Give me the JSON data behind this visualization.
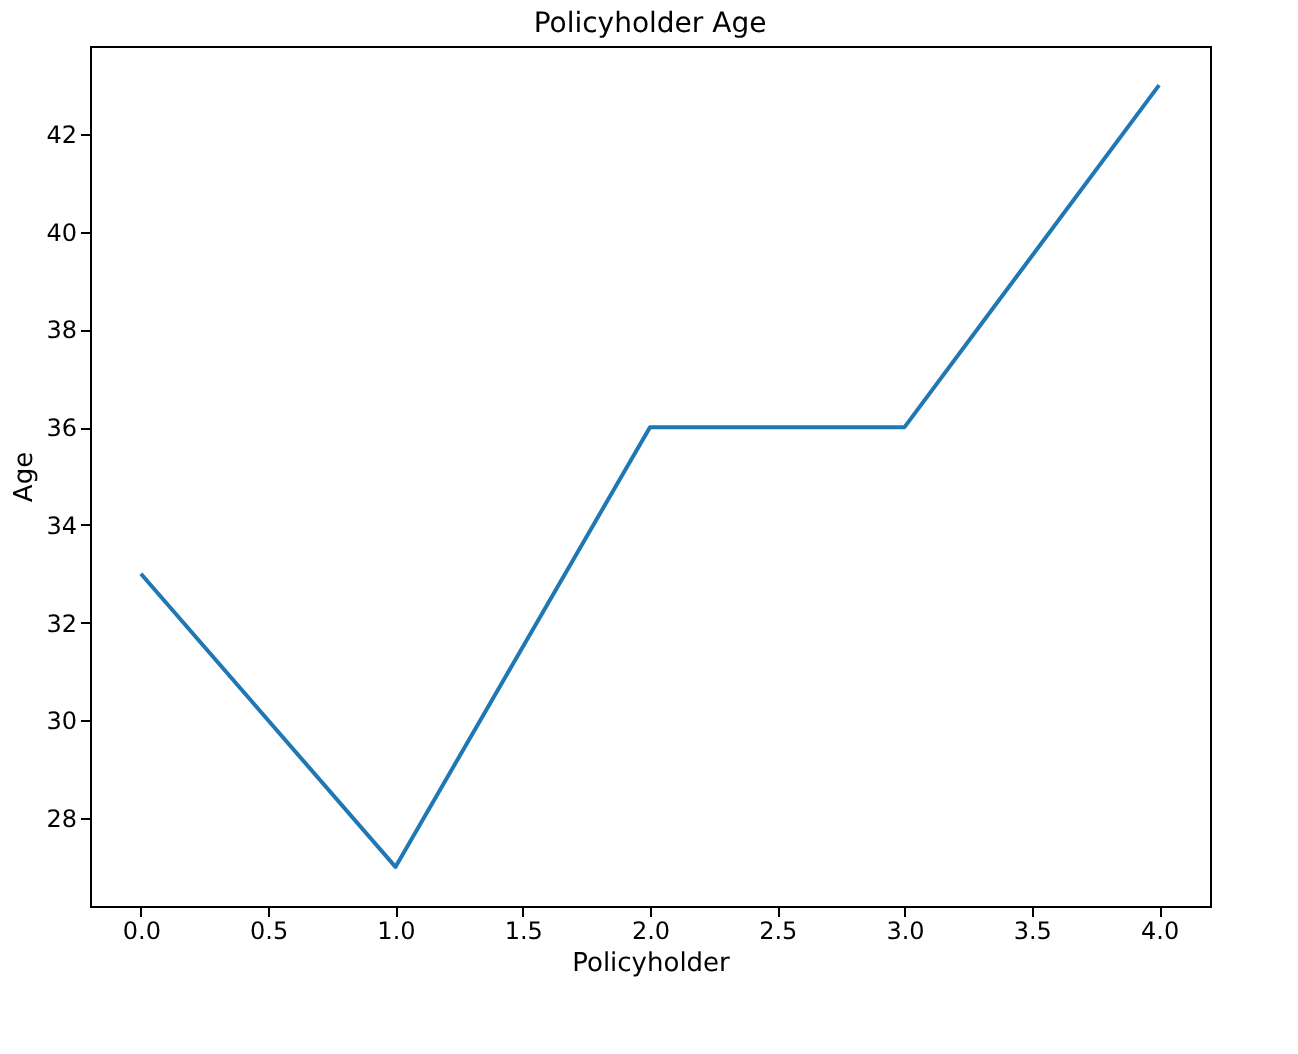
{
  "chart_data": {
    "type": "line",
    "title": "Policyholder Age",
    "xlabel": "Policyholder",
    "ylabel": "Age",
    "x": [
      0,
      1,
      2,
      3,
      4
    ],
    "series": [
      {
        "color": "#1f77b4",
        "values": [
          33,
          27,
          36,
          36,
          43
        ]
      }
    ],
    "xlim": [
      -0.2,
      4.2
    ],
    "ylim": [
      26.2,
      43.8
    ],
    "xticks": [
      {
        "value": 0,
        "label": "0.0"
      },
      {
        "value": 0.5,
        "label": "0.5"
      },
      {
        "value": 1,
        "label": "1.0"
      },
      {
        "value": 1.5,
        "label": "1.5"
      },
      {
        "value": 2,
        "label": "2.0"
      },
      {
        "value": 2.5,
        "label": "2.5"
      },
      {
        "value": 3,
        "label": "3.0"
      },
      {
        "value": 3.5,
        "label": "3.5"
      },
      {
        "value": 4,
        "label": "4.0"
      }
    ],
    "yticks": [
      28,
      30,
      32,
      34,
      36,
      38,
      40,
      42
    ],
    "grid": false,
    "marker": "none",
    "line_style": "solid"
  }
}
